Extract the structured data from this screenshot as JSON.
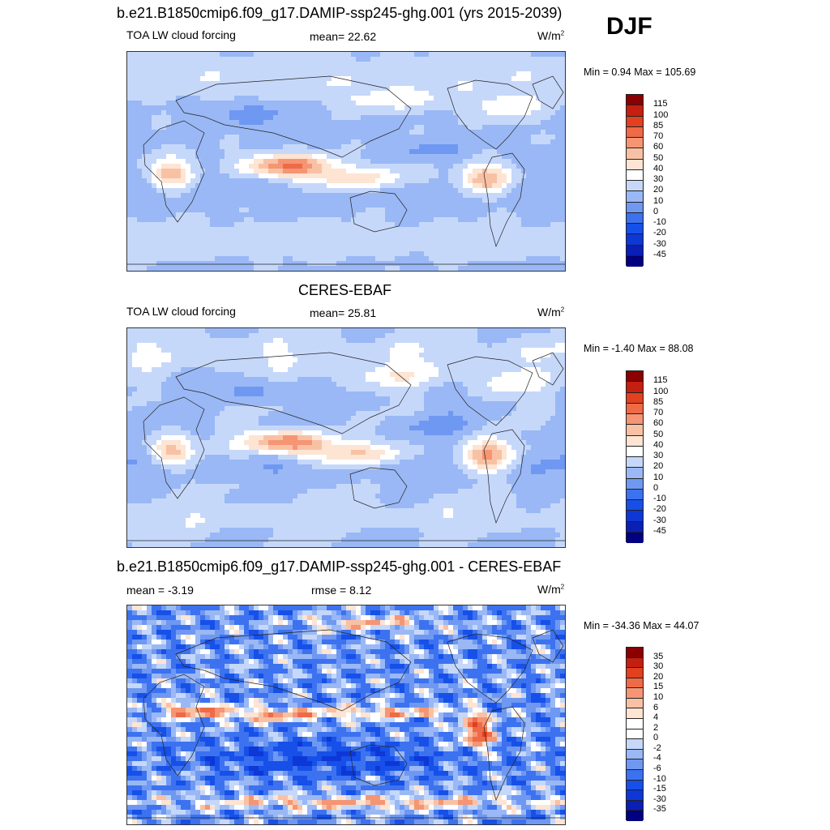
{
  "season": "DJF",
  "colors": {
    "abs_palette": [
      "#000080",
      "#0a1fb3",
      "#0d37d6",
      "#1650e8",
      "#3c72f0",
      "#6f98f2",
      "#9ab8f5",
      "#c6d8fa",
      "#ffffff",
      "#fde4d3",
      "#f9c1a4",
      "#f59574",
      "#ef6a46",
      "#e2401f",
      "#c51f10",
      "#8b0000"
    ],
    "diff_palette": [
      "#000080",
      "#0a1fb3",
      "#0d37d6",
      "#1650e8",
      "#3c72f0",
      "#6f98f2",
      "#9ab8f5",
      "#c6d8fa",
      "#ffffff",
      "#ffffff",
      "#fde4d3",
      "#f9c1a4",
      "#f59574",
      "#ef6a46",
      "#e2401f",
      "#c51f10",
      "#8b0000"
    ]
  },
  "panels": [
    {
      "title": "b.e21.B1850cmip6.f09_g17.DAMIP-ssp245-ghg.001 (yrs 2015-2039)",
      "left_label": "TOA LW cloud forcing",
      "center_label": "mean=  22.62",
      "units": "W/m",
      "units_exp": "2",
      "minmax": "Min =   0.94 Max = 105.69",
      "colorbar_labels": [
        "115",
        "100",
        "85",
        "70",
        "60",
        "50",
        "40",
        "30",
        "20",
        "10",
        "0",
        "-10",
        "-20",
        "-30",
        "-45"
      ]
    },
    {
      "title": "CERES-EBAF",
      "left_label": "TOA LW cloud forcing",
      "center_label": "mean=  25.81",
      "units": "W/m",
      "units_exp": "2",
      "minmax": "Min =  -1.40 Max =  88.08",
      "colorbar_labels": [
        "115",
        "100",
        "85",
        "70",
        "60",
        "50",
        "40",
        "30",
        "20",
        "10",
        "0",
        "-10",
        "-20",
        "-30",
        "-45"
      ]
    },
    {
      "title": "b.e21.B1850cmip6.f09_g17.DAMIP-ssp245-ghg.001 - CERES-EBAF",
      "left_label": "mean =  -3.19",
      "center_label": "rmse =   8.12",
      "units": "W/m",
      "units_exp": "2",
      "minmax": "Min = -34.36 Max =  44.07",
      "colorbar_labels": [
        "35",
        "30",
        "20",
        "15",
        "10",
        "6",
        "4",
        "2",
        "0",
        "-2",
        "-4",
        "-6",
        "-10",
        "-15",
        "-30",
        "-35"
      ]
    }
  ],
  "chart_data": [
    {
      "type": "heatmap",
      "title": "b.e21.B1850cmip6.f09_g17.DAMIP-ssp245-ghg.001 (yrs 2015-2039)",
      "variable": "TOA LW cloud forcing",
      "units": "W/m2",
      "mean": 22.62,
      "min": 0.94,
      "max": 105.69,
      "levels": [
        -45,
        -30,
        -20,
        -10,
        0,
        10,
        20,
        30,
        40,
        50,
        60,
        70,
        85,
        100,
        115
      ]
    },
    {
      "type": "heatmap",
      "title": "CERES-EBAF",
      "variable": "TOA LW cloud forcing",
      "units": "W/m2",
      "mean": 25.81,
      "min": -1.4,
      "max": 88.08,
      "levels": [
        -45,
        -30,
        -20,
        -10,
        0,
        10,
        20,
        30,
        40,
        50,
        60,
        70,
        85,
        100,
        115
      ]
    },
    {
      "type": "heatmap",
      "title": "b.e21.B1850cmip6.f09_g17.DAMIP-ssp245-ghg.001 - CERES-EBAF",
      "units": "W/m2",
      "mean": -3.19,
      "rmse": 8.12,
      "min": -34.36,
      "max": 44.07,
      "levels": [
        -35,
        -30,
        -15,
        -10,
        -6,
        -4,
        -2,
        0,
        2,
        4,
        6,
        10,
        15,
        20,
        30,
        35
      ]
    }
  ]
}
